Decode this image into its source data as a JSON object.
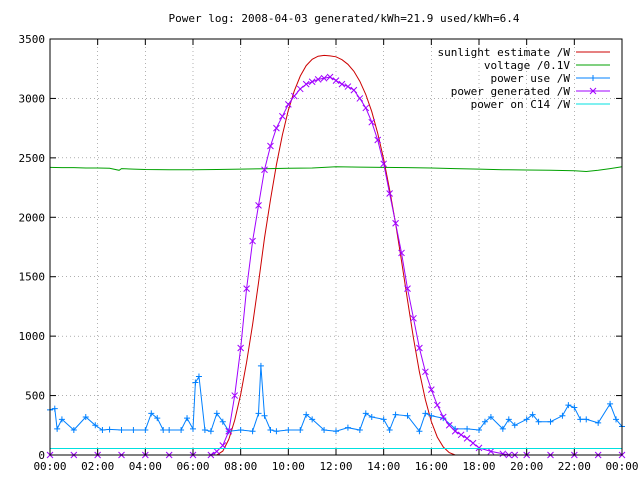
{
  "chart_data": {
    "type": "line",
    "title": "Power log: 2008-04-03 generated/kWh=21.9 used/kWh=6.4",
    "xlabel": "",
    "ylabel": "",
    "xlim": [
      0,
      24
    ],
    "ylim": [
      0,
      3500
    ],
    "grid": true,
    "legend_position": "top-right",
    "x_ticks": [
      {
        "value": 0,
        "label": "00:00"
      },
      {
        "value": 2,
        "label": "02:00"
      },
      {
        "value": 4,
        "label": "04:00"
      },
      {
        "value": 6,
        "label": "06:00"
      },
      {
        "value": 8,
        "label": "08:00"
      },
      {
        "value": 10,
        "label": "10:00"
      },
      {
        "value": 12,
        "label": "12:00"
      },
      {
        "value": 14,
        "label": "14:00"
      },
      {
        "value": 16,
        "label": "16:00"
      },
      {
        "value": 18,
        "label": "18:00"
      },
      {
        "value": 20,
        "label": "20:00"
      },
      {
        "value": 22,
        "label": "22:00"
      },
      {
        "value": 24,
        "label": "00:00"
      }
    ],
    "y_ticks": [
      {
        "value": 0,
        "label": "0"
      },
      {
        "value": 500,
        "label": "500"
      },
      {
        "value": 1000,
        "label": "1000"
      },
      {
        "value": 1500,
        "label": "1500"
      },
      {
        "value": 2000,
        "label": "2000"
      },
      {
        "value": 2500,
        "label": "2500"
      },
      {
        "value": 3000,
        "label": "3000"
      },
      {
        "value": 3500,
        "label": "3500"
      }
    ],
    "series": [
      {
        "name": "sunlight estimate /W",
        "color": "#cc0000",
        "style": "line",
        "x": [
          7.0,
          7.25,
          7.5,
          7.75,
          8.0,
          8.25,
          8.5,
          8.75,
          9.0,
          9.25,
          9.5,
          9.75,
          10.0,
          10.25,
          10.5,
          10.75,
          11.0,
          11.25,
          11.5,
          11.75,
          12.0,
          12.25,
          12.5,
          12.75,
          13.0,
          13.25,
          13.5,
          13.75,
          14.0,
          14.25,
          14.5,
          14.75,
          15.0,
          15.25,
          15.5,
          15.75,
          16.0,
          16.25,
          16.5,
          16.75,
          17.0
        ],
        "values": [
          0,
          33,
          131,
          292,
          510,
          781,
          1097,
          1449,
          1826,
          2149,
          2441,
          2693,
          2900,
          3064,
          3189,
          3276,
          3329,
          3355,
          3362,
          3358,
          3350,
          3326,
          3287,
          3228,
          3145,
          3033,
          2888,
          2707,
          2488,
          2233,
          1947,
          1634,
          1304,
          982,
          699,
          465,
          282,
          151,
          67,
          20,
          0
        ]
      },
      {
        "name": "voltage /0.1V",
        "color": "#00a000",
        "style": "line",
        "x": [
          0,
          0.5,
          1,
          1.5,
          2,
          2.5,
          2.9,
          3,
          3.5,
          4,
          5,
          6,
          7,
          8,
          9,
          10,
          11,
          12,
          13,
          14,
          15,
          16,
          17,
          18,
          19,
          20,
          21,
          22,
          22.5,
          23,
          23.5,
          24
        ],
        "values": [
          2420,
          2418,
          2418,
          2415,
          2415,
          2412,
          2395,
          2410,
          2405,
          2402,
          2400,
          2400,
          2402,
          2405,
          2408,
          2412,
          2415,
          2425,
          2422,
          2420,
          2418,
          2415,
          2410,
          2405,
          2400,
          2398,
          2395,
          2392,
          2385,
          2395,
          2410,
          2425
        ]
      },
      {
        "name": "power use /W",
        "color": "#0080ff",
        "style": "linespoints",
        "marker": "plus",
        "x": [
          0,
          0.2,
          0.3,
          0.5,
          1,
          1.5,
          1.9,
          2.2,
          2.5,
          3,
          3.5,
          4,
          4.25,
          4.5,
          4.75,
          5,
          5.5,
          5.75,
          6,
          6.1,
          6.25,
          6.5,
          6.75,
          7,
          7.25,
          7.5,
          8,
          8.5,
          8.75,
          8.85,
          9,
          9.25,
          9.5,
          10,
          10.5,
          10.75,
          11,
          11.5,
          12,
          12.5,
          13,
          13.25,
          13.5,
          14,
          14.25,
          14.5,
          15,
          15.5,
          15.75,
          16,
          16.5,
          17,
          17.5,
          18,
          18.25,
          18.5,
          19,
          19.25,
          19.5,
          20,
          20.25,
          20.5,
          21,
          21.5,
          21.75,
          22,
          22.25,
          22.5,
          23,
          23.5,
          23.75,
          24
        ],
        "values": [
          380,
          390,
          220,
          300,
          210,
          320,
          250,
          210,
          215,
          210,
          210,
          210,
          350,
          310,
          210,
          210,
          210,
          310,
          220,
          610,
          660,
          210,
          200,
          350,
          280,
          200,
          210,
          200,
          350,
          750,
          330,
          210,
          200,
          210,
          210,
          340,
          300,
          210,
          200,
          230,
          210,
          350,
          320,
          300,
          210,
          340,
          330,
          200,
          350,
          330,
          310,
          220,
          220,
          210,
          280,
          320,
          220,
          300,
          250,
          300,
          340,
          280,
          280,
          330,
          420,
          400,
          300,
          300,
          270,
          430,
          300,
          240
        ]
      },
      {
        "name": "power generated /W",
        "color": "#a000ff",
        "style": "linespoints",
        "marker": "cross",
        "x": [
          0,
          1,
          2,
          3,
          4,
          5,
          6,
          6.75,
          7.0,
          7.25,
          7.5,
          7.75,
          8.0,
          8.25,
          8.5,
          8.75,
          9.0,
          9.25,
          9.5,
          9.75,
          10.0,
          10.25,
          10.5,
          10.75,
          11.0,
          11.25,
          11.5,
          11.75,
          12.0,
          12.25,
          12.5,
          12.75,
          13.0,
          13.25,
          13.5,
          13.75,
          14.0,
          14.25,
          14.5,
          14.75,
          15.0,
          15.25,
          15.5,
          15.75,
          16.0,
          16.25,
          16.5,
          16.75,
          17.0,
          17.25,
          17.5,
          17.75,
          18.0,
          18.5,
          19.0,
          19.25,
          19.5,
          20,
          21,
          22,
          23,
          24
        ],
        "values": [
          0,
          0,
          0,
          0,
          0,
          0,
          0,
          0,
          30,
          80,
          200,
          500,
          900,
          1400,
          1800,
          2100,
          2400,
          2600,
          2750,
          2850,
          2950,
          3020,
          3080,
          3120,
          3140,
          3160,
          3170,
          3180,
          3150,
          3120,
          3100,
          3070,
          3000,
          2920,
          2800,
          2650,
          2450,
          2200,
          1950,
          1700,
          1400,
          1150,
          900,
          700,
          550,
          420,
          320,
          250,
          200,
          170,
          140,
          100,
          60,
          30,
          10,
          0,
          0,
          0,
          0,
          0,
          0,
          0
        ]
      },
      {
        "name": "power on C14 /W",
        "color": "#00e0e0",
        "style": "line",
        "x": [
          0,
          6,
          12,
          18,
          24
        ],
        "values": [
          55,
          55,
          55,
          55,
          55
        ]
      }
    ]
  }
}
